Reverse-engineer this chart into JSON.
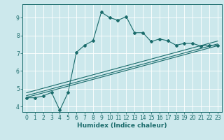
{
  "xlabel": "Humidex (Indice chaleur)",
  "bg_color": "#cce8ec",
  "line_color": "#1a6b6b",
  "xlim": [
    -0.5,
    23.5
  ],
  "ylim": [
    3.7,
    9.75
  ],
  "xticks": [
    0,
    1,
    2,
    3,
    4,
    5,
    6,
    7,
    8,
    9,
    10,
    11,
    12,
    13,
    14,
    15,
    16,
    17,
    18,
    19,
    20,
    21,
    22,
    23
  ],
  "yticks": [
    4,
    5,
    6,
    7,
    8,
    9
  ],
  "main_line": {
    "x": [
      0,
      1,
      2,
      3,
      4,
      5,
      6,
      7,
      8,
      9,
      10,
      11,
      12,
      13,
      14,
      15,
      16,
      17,
      18,
      19,
      20,
      21,
      22,
      23
    ],
    "y": [
      4.5,
      4.5,
      4.6,
      4.8,
      3.8,
      4.8,
      7.05,
      7.45,
      7.7,
      9.3,
      9.0,
      8.85,
      9.05,
      8.15,
      8.15,
      7.65,
      7.8,
      7.7,
      7.45,
      7.55,
      7.55,
      7.4,
      7.45,
      7.45
    ]
  },
  "trend_lines": [
    {
      "x": [
        0,
        23
      ],
      "y": [
        4.52,
        7.42
      ]
    },
    {
      "x": [
        0,
        23
      ],
      "y": [
        4.62,
        7.52
      ]
    },
    {
      "x": [
        0,
        23
      ],
      "y": [
        4.78,
        7.68
      ]
    }
  ]
}
